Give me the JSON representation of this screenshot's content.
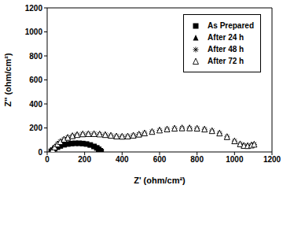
{
  "chart_data": {
    "type": "scatter",
    "x_label": "Z' (ohm/cm²)",
    "y_label": "Z'' (ohm/cm²)",
    "xlim": [
      0,
      1200
    ],
    "xticks": [
      0,
      200,
      400,
      600,
      800,
      1000,
      1200
    ],
    "ylim": [
      0,
      1200
    ],
    "yticks": [
      0,
      200,
      400,
      600,
      800,
      1000,
      1200
    ],
    "grid": false,
    "legend": "top right",
    "series": [
      {
        "name": "As Prepared",
        "color": "#000000",
        "marker": "square",
        "x": [
          22,
          30,
          40,
          55,
          70,
          90,
          110,
          130,
          150,
          170,
          190,
          210,
          230,
          250,
          265,
          275,
          283,
          288
        ],
        "values": [
          5,
          15,
          27,
          40,
          50,
          60,
          66,
          70,
          72,
          72,
          70,
          66,
          58,
          46,
          34,
          22,
          10,
          3
        ]
      },
      {
        "name": "After 24 h",
        "color": "#000000",
        "marker": "triangle",
        "x": [
          22,
          30,
          40,
          55,
          70,
          90,
          110,
          135,
          160,
          190,
          220,
          250,
          280,
          310,
          340,
          370,
          400,
          430,
          460,
          490,
          520,
          560,
          600,
          640,
          680,
          720,
          760,
          800,
          840,
          880,
          920,
          960,
          1000,
          1030,
          1050,
          1070,
          1090,
          1105
        ],
        "values": [
          5,
          20,
          40,
          65,
          85,
          105,
          120,
          133,
          142,
          148,
          150,
          150,
          147,
          142,
          136,
          130,
          128,
          130,
          137,
          146,
          156,
          168,
          180,
          189,
          195,
          198,
          198,
          195,
          188,
          175,
          155,
          125,
          90,
          65,
          52,
          50,
          55,
          62
        ]
      },
      {
        "name": "After 48 h",
        "color": "#000000",
        "marker": "asterisk",
        "x": [
          22,
          30,
          40,
          55,
          70,
          90,
          110,
          135,
          160,
          190,
          220,
          250,
          280,
          310,
          340,
          370,
          400,
          430,
          460,
          490,
          520,
          560,
          600,
          640,
          680,
          720,
          760,
          800,
          840,
          880,
          920,
          960,
          1000,
          1030,
          1050,
          1070,
          1090,
          1105
        ],
        "values": [
          6,
          21,
          41,
          66,
          86,
          106,
          121,
          134,
          143,
          149,
          151,
          151,
          148,
          143,
          137,
          131,
          129,
          131,
          138,
          147,
          157,
          169,
          181,
          190,
          196,
          199,
          199,
          196,
          189,
          176,
          156,
          126,
          91,
          66,
          53,
          51,
          56,
          63
        ]
      },
      {
        "name": "After 72 h",
        "color": "#000000",
        "marker": "triangle_open",
        "x": [
          22,
          30,
          40,
          55,
          70,
          90,
          110,
          135,
          160,
          190,
          220,
          250,
          280,
          310,
          340,
          370,
          400,
          430,
          460,
          490,
          520,
          560,
          600,
          640,
          680,
          720,
          760,
          800,
          840,
          880,
          920,
          960,
          1000,
          1030,
          1050,
          1070,
          1090,
          1105
        ],
        "values": [
          5,
          20,
          40,
          65,
          85,
          105,
          120,
          134,
          143,
          149,
          151,
          151,
          148,
          143,
          137,
          131,
          129,
          131,
          138,
          147,
          157,
          169,
          181,
          190,
          196,
          199,
          199,
          196,
          189,
          176,
          156,
          126,
          91,
          66,
          53,
          51,
          56,
          63
        ]
      }
    ]
  }
}
